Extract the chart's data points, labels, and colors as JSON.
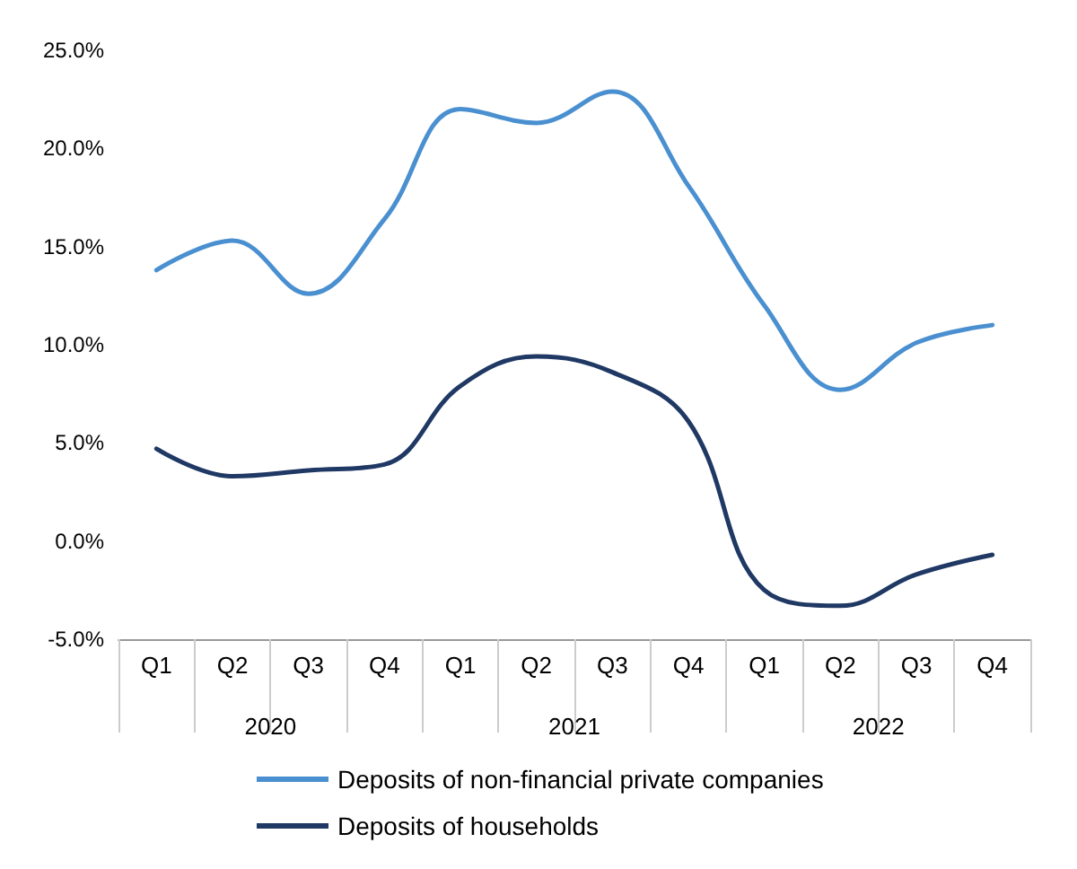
{
  "chart_data": {
    "type": "line",
    "categories": [
      "Q1",
      "Q2",
      "Q3",
      "Q4",
      "Q1",
      "Q2",
      "Q3",
      "Q4",
      "Q1",
      "Q2",
      "Q3",
      "Q4"
    ],
    "annotations": [
      "2020",
      "2021",
      "2022"
    ],
    "series": [
      {
        "name": "Deposits of non-financial private companies",
        "color": "#4a90d0",
        "values": [
          13.8,
          15.3,
          12.6,
          16.4,
          22.0,
          21.3,
          22.9,
          18.1,
          12.0,
          7.7,
          10.1,
          11.0
        ]
      },
      {
        "name": "Deposits of households",
        "color": "#1f3864",
        "values": [
          4.7,
          3.3,
          3.6,
          3.9,
          7.9,
          9.4,
          8.6,
          6.1,
          -2.5,
          -3.3,
          -1.7,
          -0.7
        ]
      }
    ],
    "ylim": [
      -5,
      25
    ],
    "yticks": [
      {
        "value": -5,
        "label": "-5.0%"
      },
      {
        "value": 0,
        "label": "0.0%"
      },
      {
        "value": 5,
        "label": "5.0%"
      },
      {
        "value": 10,
        "label": "10.0%"
      },
      {
        "value": 15,
        "label": "15.0%"
      },
      {
        "value": 20,
        "label": "20.0%"
      },
      {
        "value": 25,
        "label": "25.0%"
      }
    ],
    "grid": false,
    "legend": "bottom",
    "marker": "none",
    "line_style": "solid"
  }
}
